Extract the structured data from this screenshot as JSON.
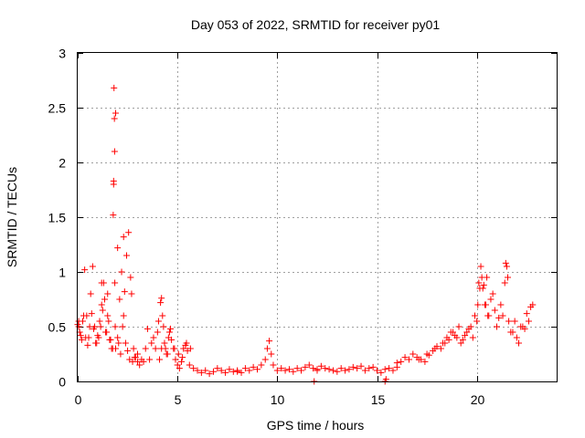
{
  "chart_data": {
    "type": "scatter",
    "title": "Day 053 of 2022, SRMTID for receiver py01",
    "xlabel": "GPS time / hours",
    "ylabel": "SRMTID / TECUs",
    "xlim": [
      0,
      24
    ],
    "ylim": [
      0,
      3
    ],
    "xticks": [
      0,
      5,
      10,
      15,
      20
    ],
    "xtick_labels": [
      "0",
      "5",
      "10",
      "15",
      "20"
    ],
    "yticks": [
      0,
      0.5,
      1,
      1.5,
      2,
      2.5,
      3
    ],
    "ytick_labels": [
      "0",
      "0.5",
      "1",
      "1.5",
      "2",
      "2.5",
      "3"
    ],
    "grid": true,
    "marker": "+",
    "color": "#ff0000",
    "series": [
      {
        "name": "SRMTID",
        "x": [
          0.0,
          0.1,
          0.2,
          0.3,
          0.4,
          0.5,
          0.6,
          0.7,
          0.8,
          0.9,
          1.0,
          1.1,
          1.2,
          1.3,
          1.4,
          1.5,
          1.6,
          1.7,
          1.8,
          1.85,
          1.9,
          2.0,
          2.1,
          2.2,
          2.3,
          2.4,
          2.5,
          2.6,
          2.7,
          2.8,
          2.9,
          3.0,
          3.1,
          3.2,
          3.3,
          3.5,
          3.7,
          3.9,
          4.0,
          4.1,
          4.2,
          4.3,
          4.4,
          4.5,
          4.6,
          4.7,
          4.8,
          4.9,
          5.0,
          5.1,
          5.2,
          5.3,
          5.4,
          5.5,
          5.6,
          5.8,
          6.0,
          6.2,
          6.4,
          6.6,
          6.8,
          7.0,
          7.2,
          7.4,
          7.6,
          7.8,
          8.0,
          8.2,
          8.4,
          8.6,
          8.8,
          9.0,
          9.2,
          9.4,
          9.5,
          9.6,
          9.7,
          9.8,
          10.0,
          10.2,
          10.4,
          10.6,
          10.8,
          11.0,
          11.2,
          11.4,
          11.6,
          11.8,
          12.0,
          12.2,
          12.4,
          12.6,
          12.8,
          13.0,
          13.2,
          13.4,
          13.6,
          13.8,
          14.0,
          14.2,
          14.4,
          14.6,
          14.8,
          15.0,
          15.2,
          15.4,
          15.6,
          15.8,
          16.0,
          16.2,
          16.4,
          16.6,
          16.8,
          17.0,
          17.2,
          17.4,
          17.6,
          17.8,
          18.0,
          18.2,
          18.4,
          18.6,
          18.8,
          19.0,
          19.2,
          19.4,
          19.6,
          19.8,
          20.0,
          20.1,
          20.2,
          20.3,
          20.4,
          20.5,
          20.6,
          20.8,
          21.0,
          21.2,
          21.4,
          21.5,
          21.6,
          21.8,
          22.0,
          22.2,
          22.4,
          22.6,
          22.8,
          0.05,
          0.15,
          0.25,
          0.35,
          0.45,
          0.55,
          0.65,
          0.75,
          0.85,
          0.95,
          1.05,
          1.15,
          1.25,
          1.35,
          1.45,
          1.55,
          1.65,
          1.75,
          1.78,
          1.8,
          1.82,
          1.84,
          1.86,
          1.88,
          1.9,
          2.05,
          2.15,
          2.25,
          2.35,
          2.45,
          2.55,
          2.65,
          2.75,
          2.85,
          3.0,
          3.4,
          3.6,
          3.8,
          4.05,
          4.15,
          4.25,
          4.35,
          4.45,
          4.55,
          4.65,
          4.85,
          5.05,
          5.25,
          5.45,
          5.65,
          17.1,
          17.5,
          17.9,
          18.3,
          18.5,
          18.7,
          18.9,
          19.1,
          19.3,
          19.5,
          19.7,
          19.9,
          20.05,
          20.15,
          20.25,
          20.35,
          20.45,
          20.55,
          20.7,
          20.9,
          21.1,
          21.3,
          21.45,
          21.55,
          21.7,
          21.9,
          22.1,
          22.3,
          22.5,
          22.7,
          11.85,
          15.4,
          15.45,
          0.05,
          1.2,
          1.5,
          2.0,
          2.3,
          4.2,
          8.0,
          12.0,
          16.0
        ],
        "y": [
          0.52,
          0.45,
          0.38,
          0.6,
          0.4,
          0.33,
          0.5,
          0.62,
          0.48,
          0.35,
          0.42,
          0.55,
          0.7,
          0.9,
          0.45,
          0.6,
          0.38,
          0.3,
          1.8,
          2.1,
          2.45,
          0.4,
          0.75,
          1.0,
          0.6,
          0.35,
          0.28,
          0.2,
          0.8,
          0.3,
          0.22,
          0.18,
          0.15,
          0.2,
          0.18,
          0.48,
          0.35,
          0.3,
          0.45,
          0.2,
          0.76,
          0.5,
          0.3,
          0.25,
          0.45,
          0.38,
          0.3,
          0.2,
          0.15,
          0.12,
          0.18,
          0.3,
          0.33,
          0.28,
          0.15,
          0.12,
          0.1,
          0.08,
          0.1,
          0.07,
          0.09,
          0.12,
          0.1,
          0.08,
          0.11,
          0.09,
          0.1,
          0.08,
          0.12,
          0.1,
          0.13,
          0.11,
          0.15,
          0.2,
          0.3,
          0.37,
          0.25,
          0.15,
          0.1,
          0.12,
          0.1,
          0.11,
          0.09,
          0.12,
          0.1,
          0.13,
          0.15,
          0.12,
          0.1,
          0.14,
          0.12,
          0.11,
          0.1,
          0.09,
          0.12,
          0.1,
          0.11,
          0.13,
          0.12,
          0.14,
          0.1,
          0.12,
          0.13,
          0.1,
          0.08,
          0.11,
          0.12,
          0.1,
          0.13,
          0.18,
          0.22,
          0.2,
          0.25,
          0.22,
          0.2,
          0.18,
          0.24,
          0.28,
          0.32,
          0.3,
          0.35,
          0.38,
          0.45,
          0.4,
          0.35,
          0.42,
          0.48,
          0.4,
          0.55,
          0.9,
          1.05,
          0.85,
          0.7,
          0.95,
          0.6,
          0.8,
          0.5,
          0.7,
          0.9,
          1.05,
          0.55,
          0.45,
          0.4,
          0.5,
          0.48,
          0.55,
          0.7,
          0.5,
          0.42,
          0.55,
          1.02,
          0.6,
          0.4,
          0.8,
          1.05,
          0.5,
          0.35,
          0.4,
          0.5,
          0.65,
          0.75,
          0.45,
          0.55,
          0.38,
          0.3,
          1.52,
          1.83,
          2.68,
          2.4,
          0.9,
          0.5,
          0.3,
          0.35,
          0.25,
          0.5,
          0.82,
          1.15,
          1.36,
          0.95,
          0.18,
          0.22,
          0.25,
          0.3,
          0.2,
          0.4,
          0.55,
          0.72,
          0.6,
          0.35,
          0.25,
          0.4,
          0.48,
          0.3,
          0.25,
          0.22,
          0.35,
          0.3,
          0.2,
          0.25,
          0.3,
          0.35,
          0.4,
          0.45,
          0.42,
          0.5,
          0.38,
          0.45,
          0.5,
          0.6,
          0.7,
          0.85,
          0.95,
          0.88,
          0.7,
          0.6,
          0.75,
          0.65,
          0.58,
          0.6,
          1.08,
          0.95,
          0.45,
          0.55,
          0.35,
          0.5,
          0.62,
          0.68,
          0.0,
          0.0,
          0.02,
          0.55,
          0.9,
          0.8,
          1.22,
          1.32,
          0.3,
          0.09,
          0.11,
          0.17
        ]
      }
    ]
  }
}
